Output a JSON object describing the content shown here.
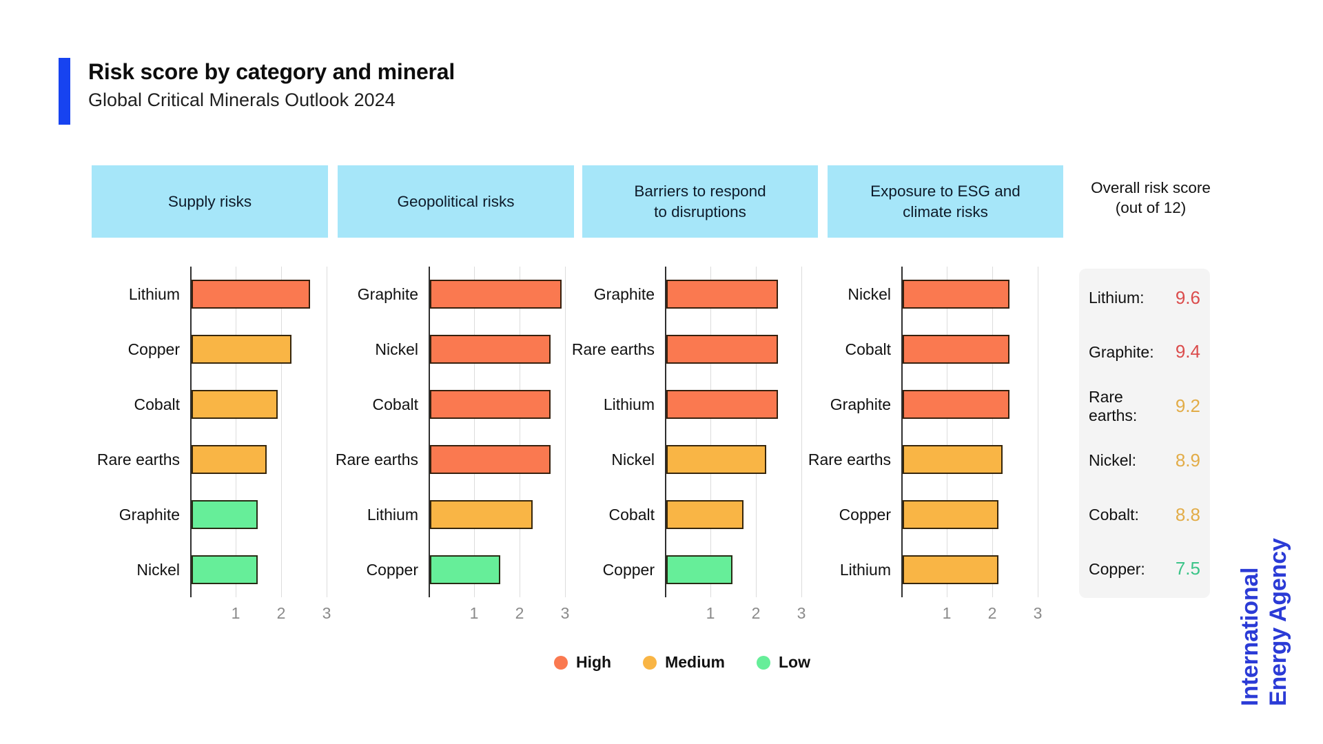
{
  "header": {
    "title": "Risk score by category and mineral",
    "subtitle": "Global Critical Minerals Outlook 2024",
    "accent_color": "#1743F0"
  },
  "category_headers": [
    "Supply risks",
    "Geopolitical risks",
    "Barriers to respond\nto disruptions",
    "Exposure to ESG and\nclimate risks"
  ],
  "overall_header": "Overall risk score\n(out of 12)",
  "chart_data": [
    {
      "type": "bar",
      "orientation": "horizontal",
      "title": "Supply risks",
      "categories": [
        "Lithium",
        "Copper",
        "Cobalt",
        "Rare earths",
        "Graphite",
        "Nickel"
      ],
      "values": [
        2.6,
        2.2,
        1.9,
        1.65,
        1.45,
        1.45
      ],
      "levels": [
        "high",
        "medium",
        "medium",
        "medium",
        "low",
        "low"
      ],
      "xticks": [
        1,
        2,
        3
      ],
      "xlim": [
        0,
        3.2
      ],
      "grid": true
    },
    {
      "type": "bar",
      "orientation": "horizontal",
      "title": "Geopolitical risks",
      "categories": [
        "Graphite",
        "Nickel",
        "Cobalt",
        "Rare earths",
        "Lithium",
        "Copper"
      ],
      "values": [
        2.9,
        2.65,
        2.65,
        2.65,
        2.25,
        1.55
      ],
      "levels": [
        "high",
        "high",
        "high",
        "high",
        "medium",
        "low"
      ],
      "xticks": [
        1,
        2,
        3
      ],
      "xlim": [
        0,
        3.2
      ],
      "grid": true
    },
    {
      "type": "bar",
      "orientation": "horizontal",
      "title": "Barriers to respond to disruptions",
      "categories": [
        "Graphite",
        "Rare earths",
        "Lithium",
        "Nickel",
        "Cobalt",
        "Copper"
      ],
      "values": [
        2.45,
        2.45,
        2.45,
        2.2,
        1.7,
        1.45
      ],
      "levels": [
        "high",
        "high",
        "high",
        "medium",
        "medium",
        "low"
      ],
      "xticks": [
        1,
        2,
        3
      ],
      "xlim": [
        0,
        3.2
      ],
      "grid": true
    },
    {
      "type": "bar",
      "orientation": "horizontal",
      "title": "Exposure to ESG and climate risks",
      "categories": [
        "Nickel",
        "Cobalt",
        "Graphite",
        "Rare earths",
        "Copper",
        "Lithium"
      ],
      "values": [
        2.35,
        2.35,
        2.35,
        2.2,
        2.1,
        2.1
      ],
      "levels": [
        "high",
        "high",
        "high",
        "medium",
        "medium",
        "medium"
      ],
      "xticks": [
        1,
        2,
        3
      ],
      "xlim": [
        0,
        3.2
      ],
      "grid": true
    },
    {
      "type": "table",
      "title": "Overall risk score (out of 12)",
      "rows": [
        [
          "Lithium",
          9.6
        ],
        [
          "Graphite",
          9.4
        ],
        [
          "Rare earths",
          9.2
        ],
        [
          "Nickel",
          8.9
        ],
        [
          "Cobalt",
          8.8
        ],
        [
          "Copper",
          7.5
        ]
      ]
    }
  ],
  "level_colors": {
    "high": "#FA7950",
    "medium": "#F9B545",
    "low": "#66EE99"
  },
  "value_colors": {
    "high": "#DB4C4C",
    "medium": "#E2AC47",
    "low": "#3BC488"
  },
  "overall_scores": {
    "rows": [
      {
        "label": "Lithium:",
        "value": "9.6",
        "level": "high"
      },
      {
        "label": "Graphite:",
        "value": "9.4",
        "level": "high"
      },
      {
        "label": "Rare earths:",
        "value": "9.2",
        "level": "medium"
      },
      {
        "label": "Nickel:",
        "value": "8.9",
        "level": "medium"
      },
      {
        "label": "Cobalt:",
        "value": "8.8",
        "level": "medium"
      },
      {
        "label": "Copper:",
        "value": "7.5",
        "level": "low"
      }
    ]
  },
  "legend": {
    "items": [
      {
        "label": "High",
        "level": "high"
      },
      {
        "label": "Medium",
        "level": "medium"
      },
      {
        "label": "Low",
        "level": "low"
      }
    ]
  },
  "branding": {
    "line1": "International",
    "line2": "Energy Agency",
    "color": "#2B3BD6"
  }
}
